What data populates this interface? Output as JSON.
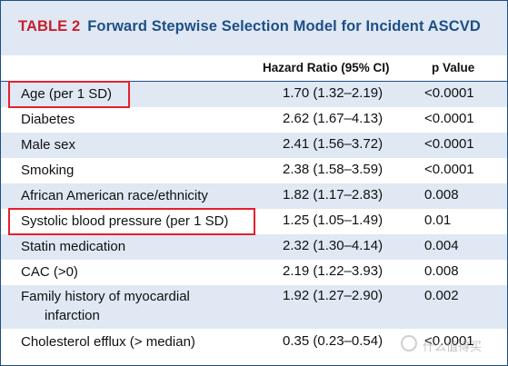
{
  "table": {
    "label": "TABLE 2",
    "title": "Forward Stepwise Selection Model for Incident ASCVD",
    "columns": {
      "hazard_ratio": "Hazard Ratio (95% CI)",
      "p_value": "p Value"
    },
    "rows": [
      {
        "label": "Age (per 1 SD)",
        "hr": "1.70 (1.32–2.19)",
        "p": "<0.0001",
        "highlighted": true
      },
      {
        "label": "Diabetes",
        "hr": "2.62 (1.67–4.13)",
        "p": "<0.0001"
      },
      {
        "label": "Male sex",
        "hr": "2.41 (1.56–3.72)",
        "p": "<0.0001"
      },
      {
        "label": "Smoking",
        "hr": "2.38 (1.58–3.59)",
        "p": "<0.0001"
      },
      {
        "label": "African American race/ethnicity",
        "hr": "1.82 (1.17–2.83)",
        "p": "0.008"
      },
      {
        "label": "Systolic blood pressure (per 1 SD)",
        "hr": "1.25 (1.05–1.49)",
        "p": "0.01",
        "highlighted": true
      },
      {
        "label": "Statin medication",
        "hr": "2.32 (1.30–4.14)",
        "p": "0.004"
      },
      {
        "label": "CAC (>0)",
        "hr": "2.19 (1.22–3.93)",
        "p": "0.008"
      },
      {
        "label_line1": "Family history of myocardial",
        "label_line2": "infarction",
        "hr": "1.92 (1.27–2.90)",
        "p": "0.002"
      },
      {
        "label": "Cholesterol efflux (> median)",
        "hr": "0.35 (0.23–0.54)",
        "p": "<0.0001"
      }
    ]
  },
  "colors": {
    "title_label": "#c8202f",
    "title": "#1e4f87",
    "shade": "#dfe8f3",
    "highlight": "#e5202e"
  },
  "watermark": {
    "icon": "watermark-circle-icon",
    "text": "什么值得买"
  }
}
